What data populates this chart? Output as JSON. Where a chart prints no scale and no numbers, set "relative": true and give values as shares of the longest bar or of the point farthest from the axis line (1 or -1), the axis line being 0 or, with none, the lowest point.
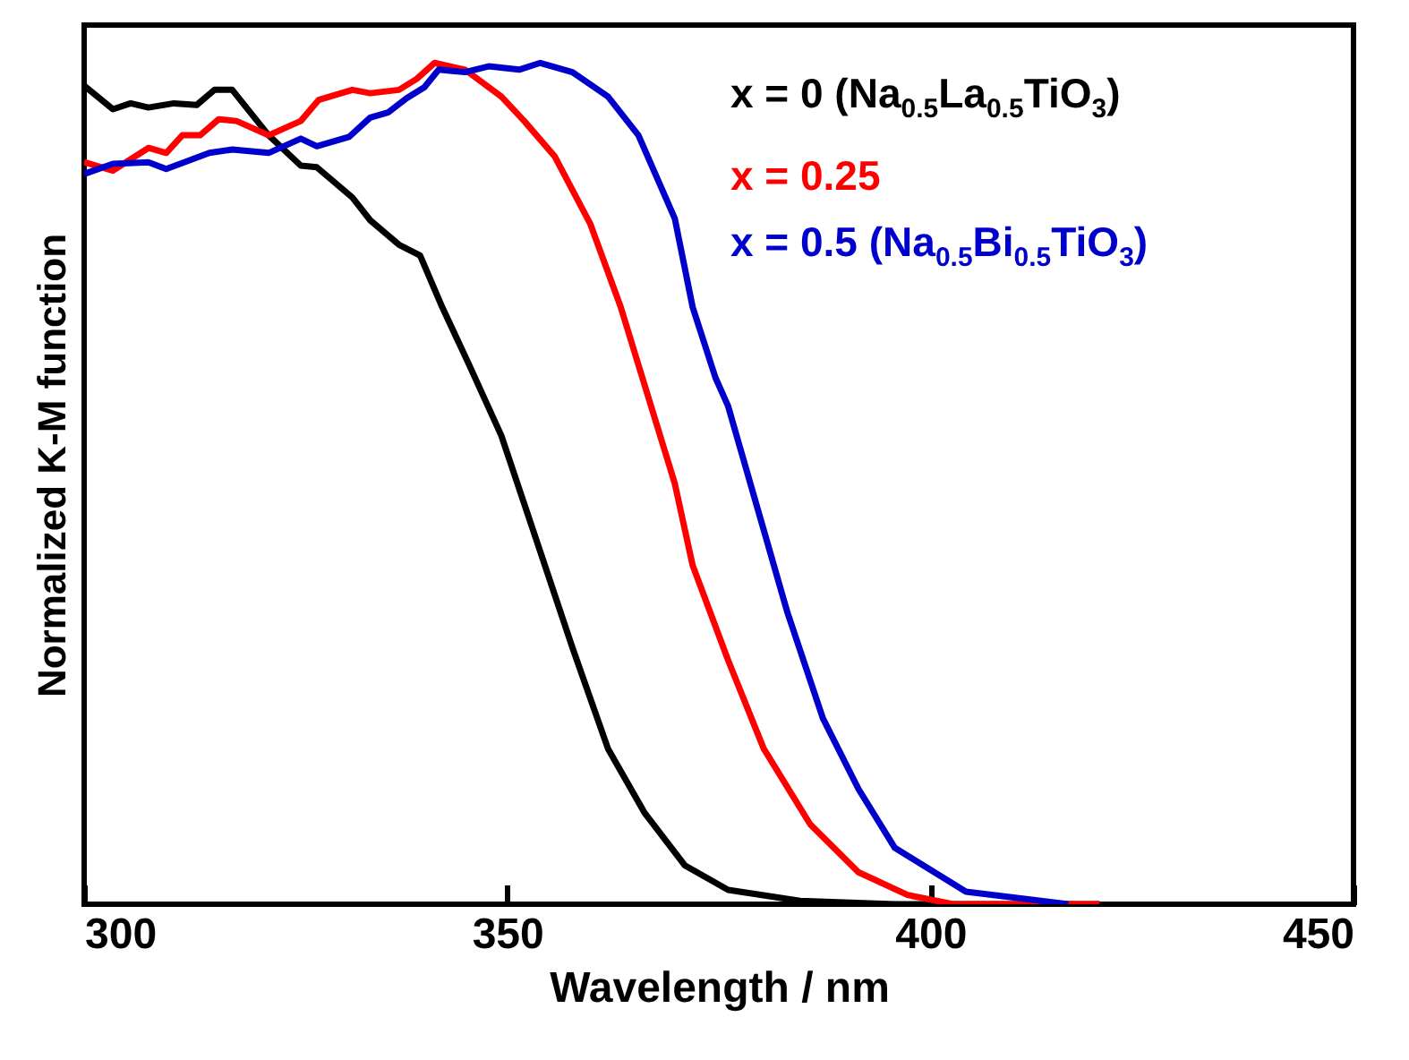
{
  "chart_data": {
    "type": "line",
    "xlabel": "Wavelength / nm",
    "ylabel": "Normalized K-M function",
    "relative": true,
    "xlim": [
      300,
      450
    ],
    "xticks": [
      300,
      350,
      400,
      450
    ],
    "legend": "top right",
    "series": [
      {
        "name": "x = 0 (Na$_{0.5}$La$_{0.5}$TiO$_{3}$)",
        "color": "#000000",
        "x": [
          300,
          303.4,
          305.5,
          307.6,
          310.6,
          313.3,
          315.4,
          317.5,
          321.8,
          325.6,
          327.5,
          331.7,
          333.8,
          337.2,
          339.7,
          342.3,
          345.5,
          349.3,
          353.5,
          357.7,
          361.9,
          366.2,
          371,
          376.1,
          384.6,
          395.8,
          420
        ],
        "values": [
          0.973,
          0.945,
          0.952,
          0.947,
          0.952,
          0.95,
          0.968,
          0.968,
          0.914,
          0.878,
          0.876,
          0.84,
          0.813,
          0.784,
          0.771,
          0.71,
          0.641,
          0.557,
          0.431,
          0.305,
          0.185,
          0.109,
          0.046,
          0.017,
          0.004,
          0,
          0
        ]
      },
      {
        "name": "x = 0.25",
        "color": "#ff0000",
        "x": [
          300,
          303.4,
          307.6,
          309.7,
          311.6,
          313.7,
          315.9,
          318,
          321.8,
          325.6,
          327.7,
          331.7,
          333.8,
          337.2,
          339.3,
          341.4,
          345,
          349.3,
          352,
          355.6,
          359.8,
          363.4,
          366.6,
          369.8,
          371.9,
          376.1,
          380.3,
          385.8,
          391.5,
          397.3,
          402.7,
          420
        ],
        "values": [
          0.882,
          0.872,
          0.899,
          0.893,
          0.914,
          0.914,
          0.933,
          0.931,
          0.914,
          0.931,
          0.956,
          0.968,
          0.964,
          0.968,
          0.981,
          1,
          0.992,
          0.96,
          0.931,
          0.889,
          0.809,
          0.71,
          0.605,
          0.5,
          0.403,
          0.29,
          0.185,
          0.095,
          0.038,
          0.011,
          0,
          0
        ]
      },
      {
        "name": "x = 0.5 (Na$_{0.5}$Bi$_{0.5}$TiO$_{3}$)",
        "color": "#0000cc",
        "x": [
          300,
          303.4,
          307.6,
          309.7,
          314.8,
          317.5,
          321.8,
          325.6,
          327.5,
          331.3,
          333.8,
          335.9,
          338.1,
          340.2,
          341.9,
          345,
          347.8,
          351.4,
          353.9,
          357.7,
          361.9,
          365.5,
          369.8,
          371.9,
          374.6,
          376.1,
          380.3,
          383.1,
          387.3,
          391.5,
          395.8,
          404.2,
          416.3
        ],
        "values": [
          0.868,
          0.88,
          0.882,
          0.874,
          0.893,
          0.897,
          0.893,
          0.91,
          0.901,
          0.912,
          0.935,
          0.941,
          0.958,
          0.971,
          0.992,
          0.989,
          0.996,
          0.992,
          1,
          0.989,
          0.96,
          0.914,
          0.815,
          0.71,
          0.626,
          0.592,
          0.445,
          0.347,
          0.221,
          0.137,
          0.067,
          0.015,
          0
        ]
      }
    ]
  }
}
